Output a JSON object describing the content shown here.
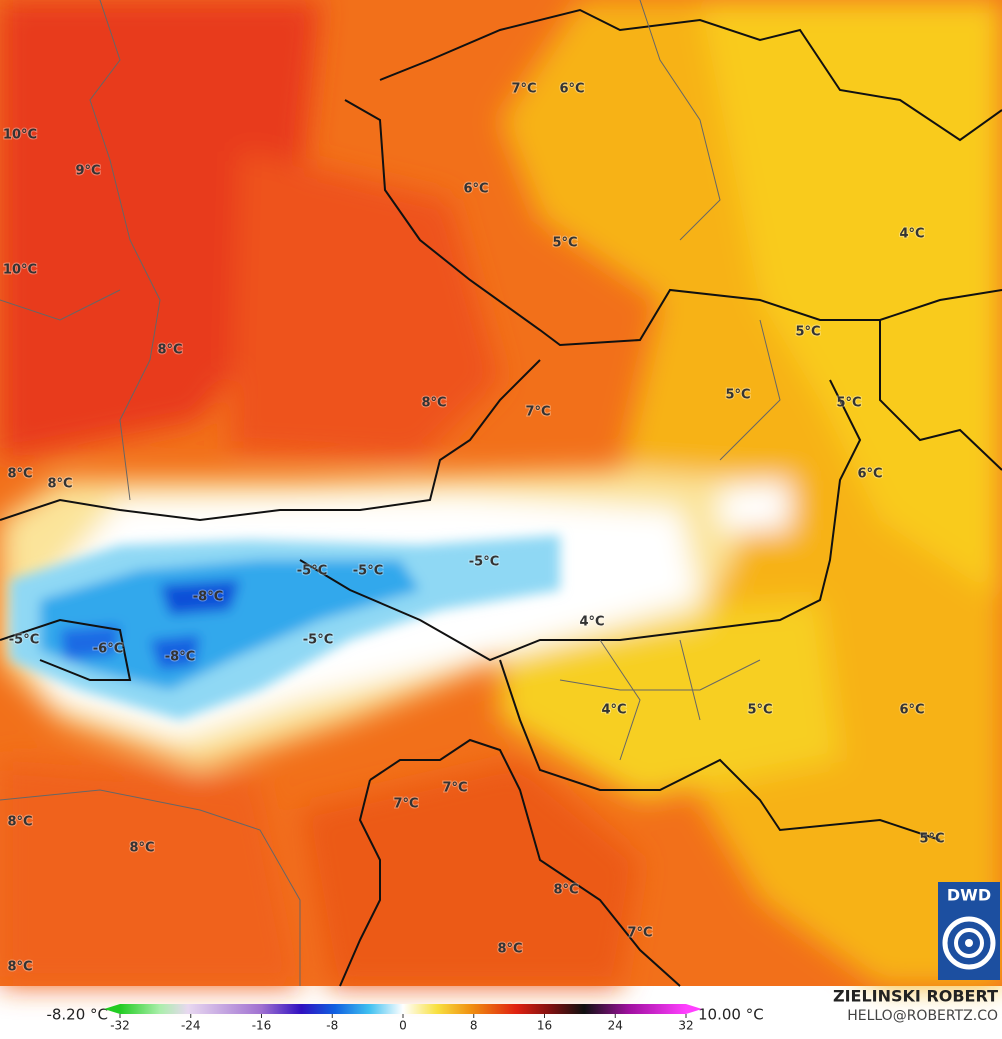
{
  "map": {
    "labels": [
      "10°C",
      "9°C",
      "10°C",
      "8°C",
      "8°C",
      "8°C",
      "7°C",
      "6°C",
      "6°C",
      "5°C",
      "4°C",
      "5°C",
      "8°C",
      "7°C",
      "5°C",
      "5°C",
      "6°C",
      "-5°C",
      "-5°C",
      "-5°C",
      "-8°C",
      "4°C",
      "-5°C",
      "-6°C",
      "-8°C",
      "-5°C",
      "4°C",
      "5°C",
      "6°C",
      "7°C",
      "7°C",
      "8°C",
      "8°C",
      "5°C",
      "8°C",
      "7°C",
      "8°C",
      "8°C"
    ],
    "logo": "DWD"
  },
  "colorbar": {
    "min_label": "-8.20 °C",
    "max_label": "10.00 °C",
    "ticks": [
      -32,
      -24,
      -16,
      -8,
      0,
      8,
      16,
      24,
      32
    ]
  },
  "credit": {
    "author": "ZIELINSKI ROBERT",
    "email": "HELLO@ROBERTZ.CO"
  }
}
